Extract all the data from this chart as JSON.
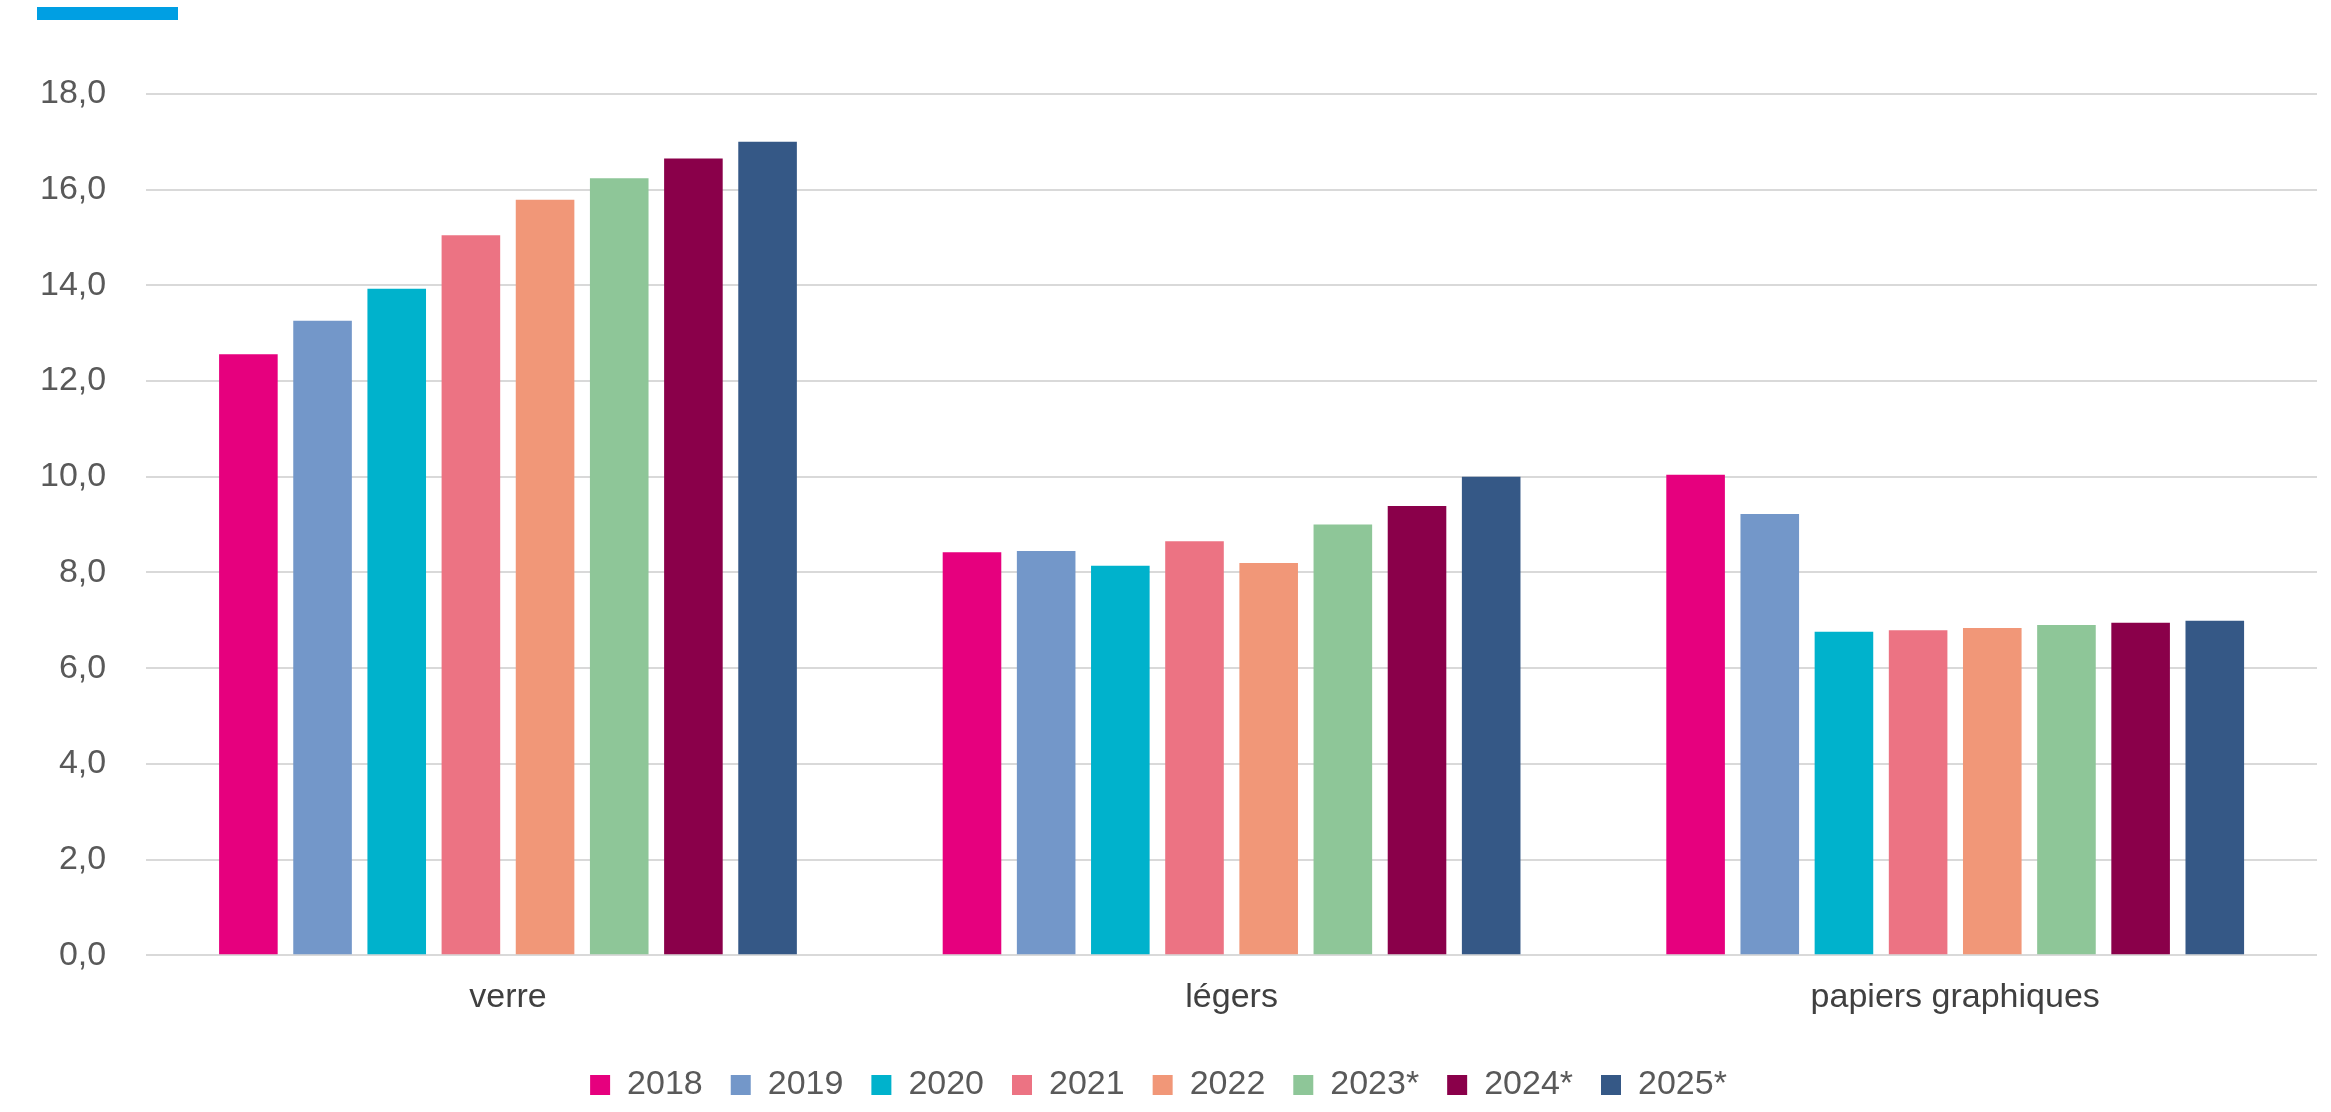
{
  "chart_data": {
    "type": "bar",
    "categories": [
      "verre",
      "légers",
      "papiers graphiques"
    ],
    "series": [
      {
        "name": "2018",
        "color": "#e6007e",
        "values": [
          12.56,
          8.42,
          10.04
        ]
      },
      {
        "name": "2019",
        "color": "#7397c9",
        "values": [
          13.26,
          8.45,
          9.22
        ]
      },
      {
        "name": "2020",
        "color": "#00b2cc",
        "values": [
          13.93,
          8.14,
          6.76
        ]
      },
      {
        "name": "2021",
        "color": "#ec7383",
        "values": [
          15.05,
          8.65,
          6.79
        ]
      },
      {
        "name": "2022",
        "color": "#f19778",
        "values": [
          15.79,
          8.2,
          6.84
        ]
      },
      {
        "name": "2023*",
        "color": "#8ec698",
        "values": [
          16.24,
          9.0,
          6.9
        ]
      },
      {
        "name": "2024*",
        "color": "#8a004a",
        "values": [
          16.65,
          9.39,
          6.95
        ]
      },
      {
        "name": "2025*",
        "color": "#355886",
        "values": [
          17.0,
          10.0,
          6.99
        ]
      }
    ],
    "ylim": [
      0,
      18
    ],
    "yticks": [
      {
        "value": 0,
        "label": "0,0"
      },
      {
        "value": 2,
        "label": "2,0"
      },
      {
        "value": 4,
        "label": "4,0"
      },
      {
        "value": 6,
        "label": "6,0"
      },
      {
        "value": 8,
        "label": "8,0"
      },
      {
        "value": 10,
        "label": "10,0"
      },
      {
        "value": 12,
        "label": "12,0"
      },
      {
        "value": 14,
        "label": "14,0"
      },
      {
        "value": 16,
        "label": "16,0"
      },
      {
        "value": 18,
        "label": "18,0"
      }
    ],
    "grid": "y",
    "legend": "bottom"
  }
}
